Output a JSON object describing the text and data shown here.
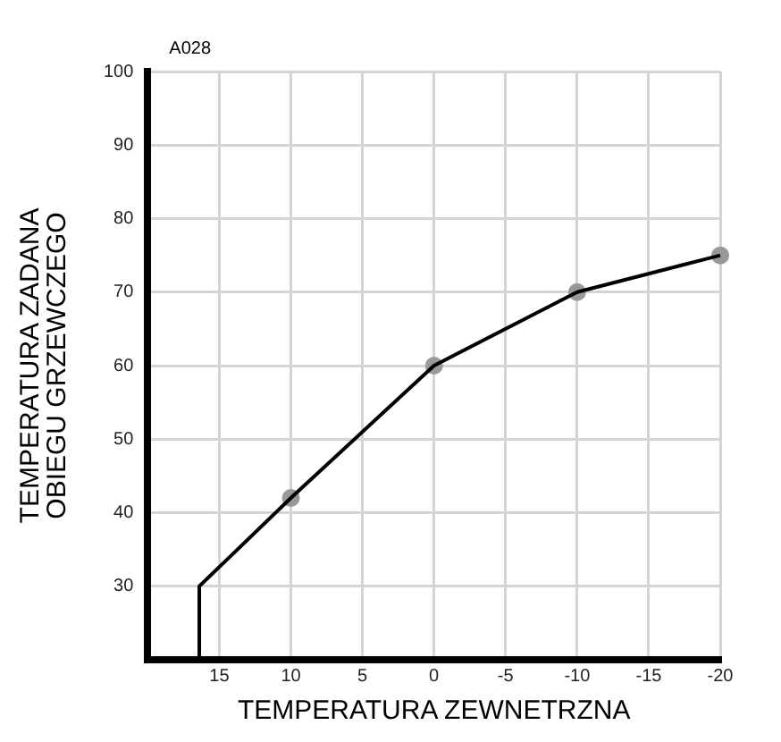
{
  "chart_data": {
    "type": "line",
    "xlabel": "TEMPERATURA ZEWNETRZNA",
    "ylabel": "TEMPERATURA ZADANA\nOBIEGU GRZEWCZEGO",
    "annotations": [
      "A028"
    ],
    "xlim": [
      20,
      -20
    ],
    "xticks": [
      15,
      10,
      5,
      0,
      -5,
      -10,
      -15,
      -20
    ],
    "ylim": [
      20,
      100
    ],
    "yticks": [
      30,
      40,
      50,
      60,
      70,
      80,
      90,
      100
    ],
    "grid": true,
    "legend": false,
    "series": [
      {
        "type": "line",
        "color": "#000000",
        "marker": "none",
        "x": [
          16.4,
          16.4,
          10,
          0,
          -10,
          -20
        ],
        "values": [
          20,
          30,
          42,
          60,
          70,
          75
        ]
      },
      {
        "type": "scatter",
        "color": "#999999",
        "marker": "circle",
        "x": [
          10,
          0,
          -10,
          -20
        ],
        "values": [
          42,
          60,
          70,
          75
        ]
      }
    ]
  }
}
